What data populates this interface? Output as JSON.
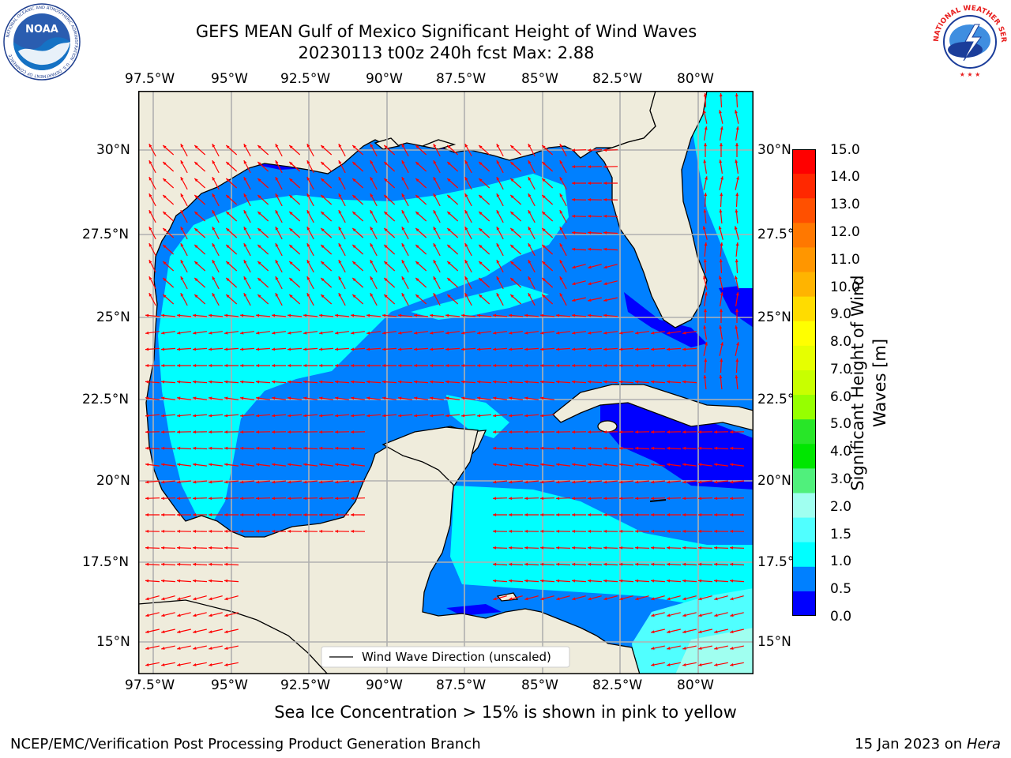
{
  "header": {
    "title_line1": "GEFS MEAN Gulf of Mexico Significant Height of Wind Waves",
    "title_line2": "20230113 t00z 240h fcst   Max: 2.88"
  },
  "logos": {
    "left_org": "NOAA",
    "left_ring_text": "NATIONAL OCEANIC AND ATMOSPHERIC ADMINISTRATION · U.S. DEPARTMENT OF COMMERCE",
    "right_ring_text": "NATIONAL WEATHER SERVICE"
  },
  "map": {
    "lon_labels": [
      "97.5°W",
      "95°W",
      "92.5°W",
      "90°W",
      "87.5°W",
      "85°W",
      "82.5°W",
      "80°W"
    ],
    "lat_labels": [
      "30°N",
      "27.5°N",
      "25°N",
      "22.5°N",
      "20°N",
      "17.5°N",
      "15°N"
    ],
    "lon_range": [
      -98,
      -78.25
    ],
    "lat_range": [
      14,
      31.75
    ],
    "grid": true,
    "legend_label": "Wind Wave Direction (unscaled)",
    "legend_position": "bottom-center",
    "colors": {
      "land": "#efecdc",
      "arrow": "#ff0000",
      "grid": "#b0b0b0"
    }
  },
  "colorbar": {
    "label": "Significant Height of Wind Waves [m]",
    "label_line1": "Significant Height of Wind",
    "label_line2": "Waves [m]",
    "ticks": [
      "15.0",
      "14.0",
      "13.0",
      "12.0",
      "11.0",
      "10.0",
      "9.0",
      "8.0",
      "7.0",
      "6.0",
      "5.0",
      "4.0",
      "3.0",
      "2.0",
      "1.5",
      "1.0",
      "0.5",
      "0.0"
    ],
    "colors_top_to_bottom": [
      "#ff0000",
      "#ff2800",
      "#ff5000",
      "#ff7800",
      "#ff9600",
      "#ffb400",
      "#ffdc00",
      "#ffff00",
      "#e6ff00",
      "#c8ff00",
      "#96ff00",
      "#28e628",
      "#00e600",
      "#50f07c",
      "#a0fff0",
      "#50ffff",
      "#00ffff",
      "#0080ff",
      "#0000ff"
    ]
  },
  "notes": {
    "sea_ice": "Sea Ice Concentration > 15% is shown in pink to yellow"
  },
  "footer": {
    "left": "NCEP/EMC/Verification Post Processing Product Generation Branch",
    "right_prefix": "15 Jan 2023 on ",
    "right_machine": "Hera"
  }
}
